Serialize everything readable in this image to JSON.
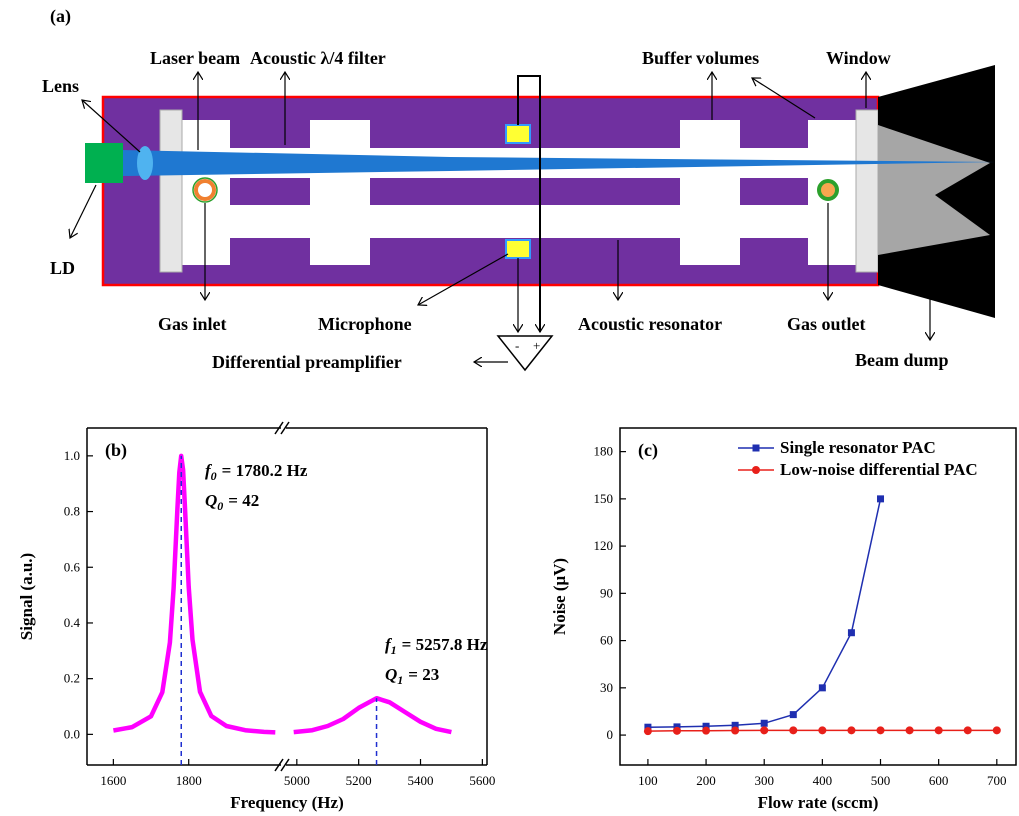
{
  "diagram": {
    "panel_label": "(a)",
    "labels": [
      "Lens",
      "Laser beam",
      "Acoustic λ/4 filter",
      "Buffer volumes",
      "Window",
      "LD",
      "Gas inlet",
      "Microphone",
      "Acoustic resonator",
      "Gas outlet",
      "Beam dump",
      "Differential preamplifier"
    ],
    "amp_signs": [
      "-",
      "+"
    ]
  },
  "chart_data": [
    {
      "type": "broken_line",
      "panel_label": "(b)",
      "x_label": "Frequency (Hz)",
      "y_label": "Signal (a.u.)",
      "color": "#ff00ff",
      "ylim": [
        -0.11,
        1.1
      ],
      "yticks": [
        {
          "value": 0,
          "label": "0.0"
        },
        0.2,
        0.4,
        0.6,
        0.8,
        {
          "value": 1,
          "label": "1.0"
        }
      ],
      "segments": [
        {
          "xlim": [
            1530,
            2045
          ],
          "xticks": [
            1600,
            1800
          ],
          "x": [
            1600,
            1650,
            1700,
            1730,
            1750,
            1760,
            1770,
            1775,
            1780,
            1785,
            1790,
            1800,
            1810,
            1830,
            1860,
            1900,
            1950,
            2000,
            2030
          ],
          "values": [
            0.014,
            0.026,
            0.065,
            0.151,
            0.33,
            0.524,
            0.81,
            0.94,
            1.0,
            0.95,
            0.82,
            0.53,
            0.34,
            0.153,
            0.066,
            0.03,
            0.015,
            0.009,
            0.007
          ]
        },
        {
          "xlim": [
            4965,
            5615
          ],
          "xticks": [
            5000,
            5200,
            5400,
            5600
          ],
          "x": [
            4990,
            5050,
            5100,
            5150,
            5200,
            5258,
            5300,
            5350,
            5400,
            5450,
            5500
          ],
          "values": [
            0.008,
            0.015,
            0.03,
            0.055,
            0.095,
            0.13,
            0.115,
            0.08,
            0.045,
            0.02,
            0.008
          ]
        }
      ],
      "peaks": [
        {
          "x": 1780.2,
          "y": 1.0
        },
        {
          "x": 5257.8,
          "y": 0.13
        }
      ],
      "annotations": [
        {
          "symbol": "f",
          "subscript": "0",
          "text": "= 1780.2 Hz"
        },
        {
          "symbol": "Q",
          "subscript": "0",
          "text": "= 42"
        },
        {
          "symbol": "f",
          "subscript": "1",
          "text": "= 5257.8 Hz"
        },
        {
          "symbol": "Q",
          "subscript": "1",
          "text": "= 23"
        }
      ]
    },
    {
      "type": "line",
      "panel_label": "(c)",
      "x_label": "Flow rate (sccm)",
      "y_label": "Noise (μV)",
      "xlim": [
        52,
        733
      ],
      "xticks": [
        100,
        200,
        300,
        400,
        500,
        600,
        700
      ],
      "ylim": [
        -19,
        195
      ],
      "yticks": [
        0,
        30,
        60,
        90,
        120,
        150,
        180
      ],
      "legend": "upper left",
      "series": [
        {
          "name": "Single resonator PAC",
          "color": "#1f2fb0",
          "marker": "square",
          "x": [
            100,
            150,
            200,
            250,
            300,
            350,
            400,
            450,
            500
          ],
          "values": [
            5,
            5.2,
            5.6,
            6.2,
            7.5,
            13,
            30,
            65,
            150
          ]
        },
        {
          "name": "Low-noise differential PAC",
          "color": "#e8201a",
          "marker": "circle",
          "x": [
            100,
            150,
            200,
            250,
            300,
            350,
            400,
            450,
            500,
            550,
            600,
            650,
            700
          ],
          "values": [
            2.5,
            2.7,
            2.8,
            2.9,
            3,
            3,
            3,
            3,
            3,
            3,
            3,
            3,
            3
          ]
        }
      ]
    }
  ]
}
